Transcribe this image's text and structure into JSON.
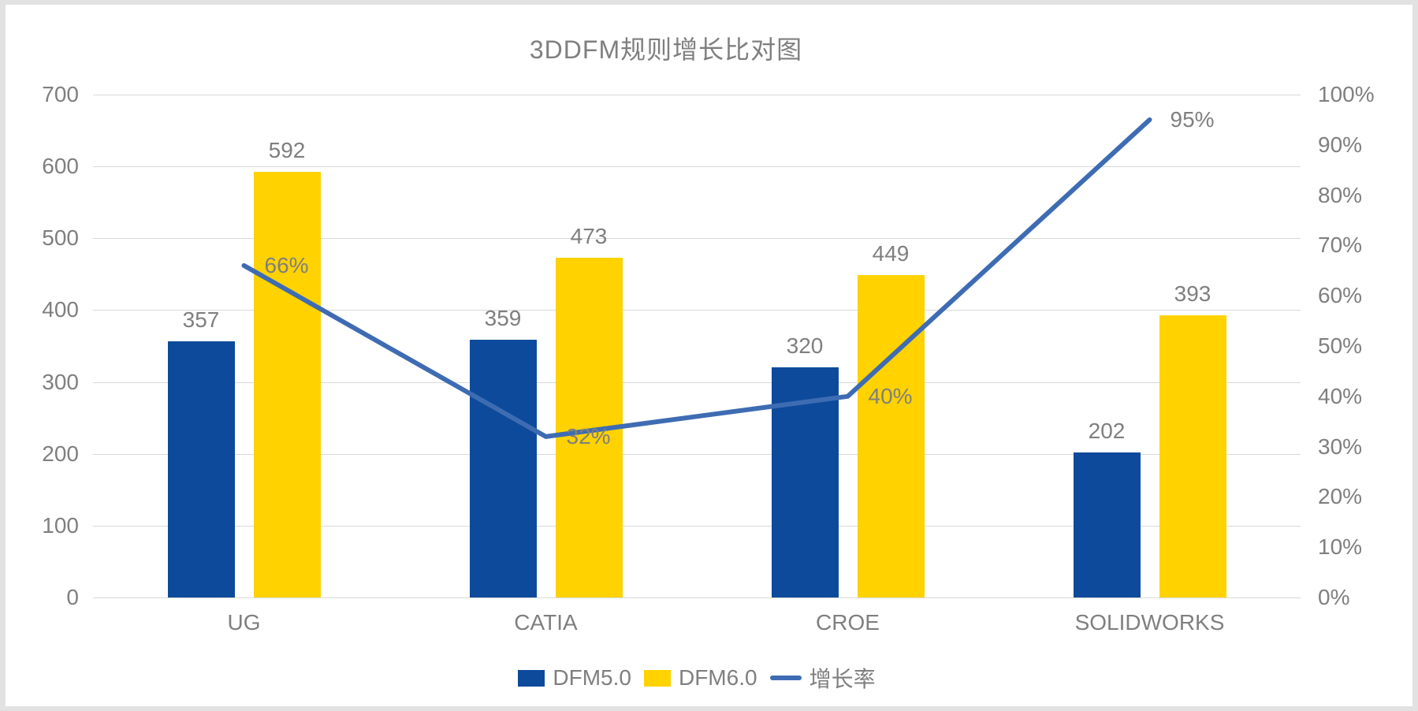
{
  "chart_data": {
    "type": "combo",
    "title": "3DDFM规则增长比对图",
    "categories": [
      "UG",
      "CATIA",
      "CROE",
      "SOLIDWORKS"
    ],
    "series": [
      {
        "id": "dfm5",
        "name": "DFM5.0",
        "type": "bar",
        "axis": "left",
        "color": "#0d4a9b",
        "values": [
          357,
          359,
          320,
          202
        ],
        "labels": [
          "357",
          "359",
          "320",
          "202"
        ]
      },
      {
        "id": "dfm6",
        "name": "DFM6.0",
        "type": "bar",
        "axis": "left",
        "color": "#ffd200",
        "values": [
          592,
          473,
          449,
          393
        ],
        "labels": [
          "592",
          "473",
          "449",
          "393"
        ]
      },
      {
        "id": "growth",
        "name": "增长率",
        "type": "line",
        "axis": "right",
        "color": "#3e6cb3",
        "values": [
          66,
          32,
          40,
          95
        ],
        "labels": [
          "66%",
          "32%",
          "40%",
          "95%"
        ]
      }
    ],
    "left_axis": {
      "min": 0,
      "max": 700,
      "ticks": [
        "0",
        "100",
        "200",
        "300",
        "400",
        "500",
        "600",
        "700"
      ]
    },
    "right_axis": {
      "min": 0,
      "max": 100,
      "ticks": [
        "0%",
        "10%",
        "20%",
        "30%",
        "40%",
        "50%",
        "60%",
        "70%",
        "80%",
        "90%",
        "100%"
      ]
    },
    "legend_position": "bottom",
    "grid": true,
    "text_color": "#7f7f7f",
    "gridline_color": "#d9d9d9",
    "background_color": "#ffffff"
  }
}
